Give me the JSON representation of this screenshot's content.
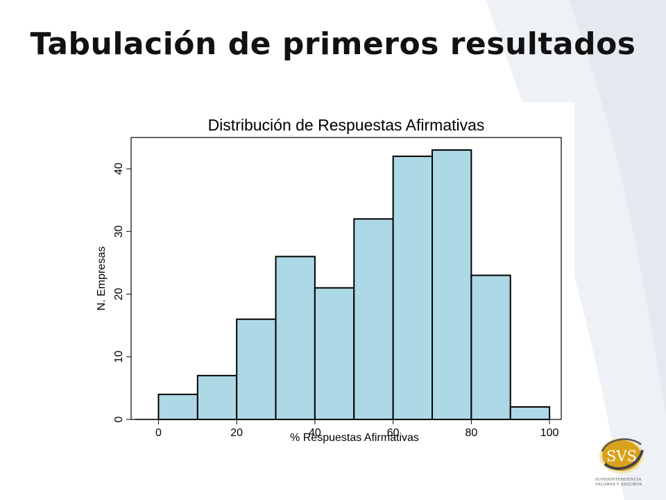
{
  "slide": {
    "title": "Tabulación de primeros resultados"
  },
  "logo": {
    "mark": "SVS",
    "line1": "SUPERINTENDENCIA",
    "line2": "VALORES Y SEGUROS"
  },
  "chart_data": {
    "type": "bar",
    "title": "Distribución de Respuestas Afirmativas",
    "xlabel": "% Respuestas Afirmativas",
    "ylabel": "N. Empresas",
    "bins": [
      [
        0,
        10
      ],
      [
        10,
        20
      ],
      [
        20,
        30
      ],
      [
        30,
        40
      ],
      [
        40,
        50
      ],
      [
        50,
        60
      ],
      [
        60,
        70
      ],
      [
        70,
        80
      ],
      [
        80,
        90
      ],
      [
        90,
        100
      ]
    ],
    "values": [
      4,
      7,
      16,
      26,
      21,
      32,
      42,
      43,
      23,
      2
    ],
    "xlim": [
      -7,
      103
    ],
    "ylim": [
      0,
      45
    ],
    "xticks": [
      0,
      20,
      40,
      60,
      80,
      100
    ],
    "yticks": [
      0,
      10,
      20,
      30,
      40
    ],
    "bar_color": "#add8e6",
    "grid": false,
    "legend": "none"
  }
}
